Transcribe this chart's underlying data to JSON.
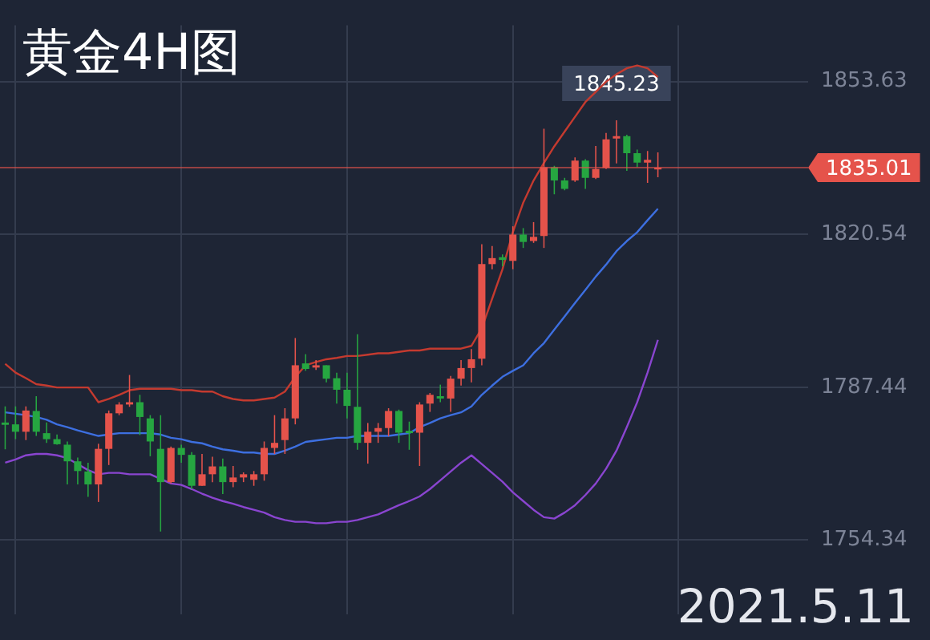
{
  "chart_data": {
    "type": "candlestick",
    "title": "黄金4H图",
    "categories": [
      null,
      null,
      null,
      null,
      null,
      null,
      null,
      null,
      null,
      null,
      null,
      null,
      null,
      null,
      null,
      null,
      null,
      null,
      null,
      null,
      null,
      null,
      null,
      null,
      null,
      null,
      null,
      null,
      null,
      null,
      null,
      null,
      null,
      null,
      null,
      null,
      null,
      null,
      null,
      null,
      null,
      null,
      null,
      null,
      null,
      null,
      null,
      null,
      null,
      null,
      null,
      null,
      null,
      null,
      null,
      null,
      null,
      null,
      null,
      null,
      null,
      null,
      null,
      null,
      null,
      null,
      null,
      null,
      null,
      null,
      null,
      null,
      null,
      null,
      null,
      null,
      null,
      null
    ],
    "ohlc": [
      [
        1779.8,
        1783.3,
        1774.0,
        1779.3
      ],
      [
        1779.4,
        1783.3,
        1776.2,
        1777.8
      ],
      [
        1777.8,
        1783.3,
        1776.0,
        1782.4
      ],
      [
        1782.3,
        1785.5,
        1776.9,
        1777.8
      ],
      [
        1777.5,
        1779.8,
        1775.4,
        1776.2
      ],
      [
        1776.2,
        1777.2,
        1775.0,
        1775.1
      ],
      [
        1775.0,
        1775.7,
        1766.4,
        1771.4
      ],
      [
        1771.4,
        1772.2,
        1766.4,
        1769.3
      ],
      [
        1769.2,
        1771.1,
        1763.7,
        1766.4
      ],
      [
        1766.4,
        1775.2,
        1762.6,
        1774.1
      ],
      [
        1774.1,
        1782.4,
        1770.6,
        1781.8
      ],
      [
        1781.8,
        1784.2,
        1781.4,
        1783.7
      ],
      [
        1783.7,
        1790.1,
        1783.2,
        1784.2
      ],
      [
        1784.2,
        1785.8,
        1777.1,
        1781.0
      ],
      [
        1780.7,
        1781.4,
        1772.5,
        1775.7
      ],
      [
        1774.1,
        1781.4,
        1756.2,
        1766.9
      ],
      [
        1766.9,
        1774.6,
        1766.6,
        1774.3
      ],
      [
        1774.3,
        1775.0,
        1771.1,
        1772.8
      ],
      [
        1772.8,
        1773.4,
        1765.4,
        1766.1
      ],
      [
        1766.1,
        1773.0,
        1766.1,
        1768.6
      ],
      [
        1768.6,
        1772.4,
        1766.9,
        1770.3
      ],
      [
        1770.3,
        1772.0,
        1764.3,
        1766.9
      ],
      [
        1766.9,
        1770.4,
        1765.8,
        1767.9
      ],
      [
        1767.9,
        1769.0,
        1766.9,
        1768.6
      ],
      [
        1767.4,
        1769.3,
        1766.1,
        1768.6
      ],
      [
        1768.6,
        1775.7,
        1767.2,
        1774.3
      ],
      [
        1774.3,
        1781.4,
        1773.0,
        1775.4
      ],
      [
        1776.0,
        1782.9,
        1773.0,
        1780.7
      ],
      [
        1780.7,
        1798.1,
        1779.4,
        1792.2
      ],
      [
        1792.6,
        1794.6,
        1791.0,
        1791.4
      ],
      [
        1791.7,
        1793.3,
        1791.2,
        1792.2
      ],
      [
        1792.2,
        1792.2,
        1788.5,
        1789.3
      ],
      [
        1789.4,
        1790.6,
        1783.9,
        1786.9
      ],
      [
        1786.9,
        1790.6,
        1780.7,
        1783.4
      ],
      [
        1783.2,
        1798.9,
        1773.9,
        1775.4
      ],
      [
        1775.4,
        1779.7,
        1770.9,
        1777.8
      ],
      [
        1777.8,
        1779.7,
        1775.4,
        1778.6
      ],
      [
        1778.6,
        1782.9,
        1776.8,
        1782.3
      ],
      [
        1782.3,
        1782.6,
        1775.4,
        1777.6
      ],
      [
        1778.0,
        1780.0,
        1773.9,
        1777.5
      ],
      [
        1777.6,
        1784.2,
        1770.4,
        1783.7
      ],
      [
        1783.9,
        1786.2,
        1782.1,
        1785.8
      ],
      [
        1785.5,
        1788.0,
        1784.2,
        1785.0
      ],
      [
        1785.0,
        1789.9,
        1782.1,
        1789.3
      ],
      [
        1789.3,
        1793.3,
        1787.8,
        1791.6
      ],
      [
        1791.6,
        1795.7,
        1788.5,
        1793.5
      ],
      [
        1793.6,
        1818.4,
        1792.2,
        1814.1
      ],
      [
        1814.1,
        1818.0,
        1813.0,
        1815.4
      ],
      [
        1815.6,
        1816.2,
        1813.6,
        1815.0
      ],
      [
        1814.8,
        1822.3,
        1813.0,
        1820.5
      ],
      [
        1820.5,
        1821.9,
        1817.6,
        1818.9
      ],
      [
        1819.1,
        1823.2,
        1818.7,
        1820.0
      ],
      [
        1820.2,
        1843.4,
        1817.6,
        1835.1
      ],
      [
        1835.1,
        1835.4,
        1829.2,
        1832.2
      ],
      [
        1832.2,
        1832.8,
        1830.1,
        1830.4
      ],
      [
        1832.2,
        1837.2,
        1831.9,
        1836.5
      ],
      [
        1836.5,
        1836.8,
        1830.4,
        1832.8
      ],
      [
        1832.8,
        1839.7,
        1832.5,
        1834.7
      ],
      [
        1834.9,
        1842.5,
        1834.7,
        1841.1
      ],
      [
        1841.3,
        1845.23,
        1835.9,
        1841.8
      ],
      [
        1841.8,
        1842.1,
        1834.3,
        1838.1
      ],
      [
        1838.1,
        1838.9,
        1835.1,
        1836.1
      ],
      [
        1836.1,
        1838.6,
        1831.7,
        1836.7
      ],
      [
        1834.6,
        1838.3,
        1832.9,
        1835.01
      ],
      null,
      null,
      null,
      null,
      null,
      null,
      null,
      null,
      null,
      null,
      null,
      null,
      null,
      null
    ],
    "colors": [
      "#26a641",
      "#26a641",
      "#e5534b",
      "#26a641",
      "#26a641",
      "#26a641",
      "#26a641",
      "#26a641",
      "#26a641",
      "#e5534b",
      "#e5534b",
      "#e5534b",
      "#e5534b",
      "#26a641",
      "#26a641",
      "#26a641",
      "#e5534b",
      "#26a641",
      "#26a641",
      "#e5534b",
      "#e5534b",
      "#26a641",
      "#e5534b",
      "#e5534b",
      "#e5534b",
      "#e5534b",
      "#e5534b",
      "#e5534b",
      "#e5534b",
      "#26a641",
      "#e5534b",
      "#26a641",
      "#26a641",
      "#26a641",
      "#26a641",
      "#e5534b",
      "#e5534b",
      "#e5534b",
      "#26a641",
      "#26a641",
      "#e5534b",
      "#e5534b",
      "#26a641",
      "#e5534b",
      "#e5534b",
      "#e5534b",
      "#e5534b",
      "#e5534b",
      "#26a641",
      "#e5534b",
      "#26a641",
      "#e5534b",
      "#e5534b",
      "#26a641",
      "#26a641",
      "#e5534b",
      "#26a641",
      "#e5534b",
      "#e5534b",
      "#e5534b",
      "#26a641",
      "#26a641",
      "#e5534b",
      "#e5534b",
      null,
      null,
      null,
      null,
      null,
      null,
      null,
      null,
      null,
      null,
      null,
      null,
      null,
      null
    ],
    "series": [
      {
        "type": "line",
        "color": "#c43a2f",
        "values": [
          1792.5,
          1790.6,
          1789.4,
          1788.1,
          1787.8,
          1787.4,
          1787.4,
          1787.4,
          1787.4,
          1784.2,
          1784.9,
          1785.8,
          1786.8,
          1787.1,
          1787.1,
          1787.1,
          1787.1,
          1786.8,
          1786.8,
          1786.5,
          1786.5,
          1785.5,
          1784.9,
          1784.6,
          1784.6,
          1784.9,
          1785.2,
          1786.5,
          1789.7,
          1792.2,
          1792.9,
          1793.5,
          1793.8,
          1794.2,
          1794.2,
          1794.5,
          1794.8,
          1794.8,
          1795.1,
          1795.4,
          1795.4,
          1795.8,
          1795.8,
          1795.8,
          1795.8,
          1796.4,
          1800.2,
          1806.6,
          1813.0,
          1821.0,
          1827.4,
          1832.2,
          1836.0,
          1839.6,
          1842.8,
          1846.0,
          1849.2,
          1851.4,
          1853.6,
          1855.2,
          1856.5,
          1857.1,
          1856.5,
          1854.6,
          null,
          null,
          null,
          null,
          null,
          null,
          null,
          null,
          null,
          null,
          null,
          null,
          null,
          null
        ]
      },
      {
        "type": "line",
        "color": "#3d6fe0",
        "values": [
          1782.0,
          1781.7,
          1781.4,
          1781.0,
          1780.4,
          1779.4,
          1778.8,
          1778.1,
          1777.5,
          1776.9,
          1777.2,
          1777.5,
          1777.5,
          1777.5,
          1777.5,
          1777.2,
          1776.5,
          1776.2,
          1775.6,
          1775.3,
          1774.6,
          1774.0,
          1773.7,
          1773.3,
          1773.3,
          1773.0,
          1773.0,
          1773.7,
          1774.6,
          1775.6,
          1775.9,
          1776.2,
          1776.5,
          1776.5,
          1776.9,
          1776.9,
          1776.9,
          1776.9,
          1777.2,
          1777.5,
          1778.8,
          1779.7,
          1780.7,
          1781.4,
          1782.0,
          1783.3,
          1785.8,
          1787.8,
          1789.7,
          1791.0,
          1792.2,
          1794.8,
          1797.0,
          1799.9,
          1802.8,
          1805.7,
          1808.5,
          1811.4,
          1814.0,
          1816.9,
          1819.1,
          1821.0,
          1823.6,
          1826.1,
          null,
          null,
          null,
          null,
          null,
          null,
          null,
          null,
          null,
          null,
          null,
          null,
          null,
          null
        ]
      },
      {
        "type": "line",
        "color": "#8a45d0",
        "values": [
          1771.1,
          1771.8,
          1772.7,
          1773.0,
          1773.0,
          1772.7,
          1772.1,
          1770.8,
          1769.5,
          1768.6,
          1768.9,
          1768.9,
          1768.6,
          1768.6,
          1768.6,
          1767.6,
          1766.6,
          1766.3,
          1765.4,
          1764.4,
          1763.5,
          1762.8,
          1762.2,
          1761.5,
          1760.9,
          1760.3,
          1759.3,
          1758.7,
          1758.3,
          1758.3,
          1758.0,
          1758.0,
          1758.3,
          1758.3,
          1758.7,
          1759.3,
          1759.9,
          1760.9,
          1761.9,
          1762.8,
          1763.8,
          1765.4,
          1767.3,
          1769.2,
          1771.1,
          1772.7,
          1770.8,
          1768.9,
          1767.0,
          1764.7,
          1762.8,
          1760.9,
          1759.3,
          1759.0,
          1760.3,
          1761.9,
          1764.1,
          1766.6,
          1769.8,
          1773.7,
          1778.8,
          1784.2,
          1790.6,
          1797.7,
          null,
          null,
          null,
          null,
          null,
          null,
          null,
          null,
          null,
          null,
          null,
          null,
          null,
          null
        ]
      }
    ],
    "ylim": [
      1738.2,
      1865.8
    ],
    "yticks": [
      1754.34,
      1787.44,
      1820.54,
      1853.63
    ],
    "tick_labels": "y",
    "grid": true,
    "legend": false,
    "ref_lines": [
      {
        "axis": "y",
        "value": 1835.01,
        "label": "1835.01",
        "color": "#e5534b"
      }
    ],
    "annotations": [
      {
        "text": "1845.23",
        "y": 1845.23
      },
      "2021.5.11"
    ]
  }
}
